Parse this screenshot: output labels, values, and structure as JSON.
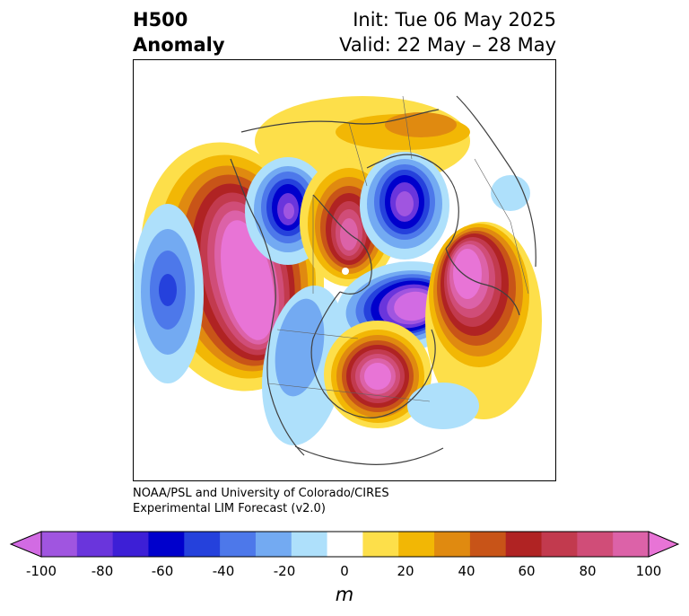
{
  "title": {
    "left": [
      "H500",
      "Anomaly"
    ],
    "right": [
      "Init: Tue 06 May 2025",
      "Valid: 22 May – 28 May"
    ]
  },
  "credits": [
    "NOAA/PSL and University of Colorado/CIRES",
    "Experimental LIM Forecast (v2.0)"
  ],
  "colorbar": {
    "unit": "m",
    "ticks": [
      "-100",
      "-80",
      "-60",
      "-40",
      "-20",
      "0",
      "20",
      "40",
      "60",
      "80",
      "100"
    ],
    "levels": [
      {
        "range": "-100 to -90",
        "color": "#d26be3"
      },
      {
        "range": "-90 to -80",
        "color": "#a055e0"
      },
      {
        "range": "-80 to -70",
        "color": "#6a35dc"
      },
      {
        "range": "-70 to -60",
        "color": "#3d1fd6"
      },
      {
        "range": "-60 to -50",
        "color": "#0000cc"
      },
      {
        "range": "-50 to -40",
        "color": "#2541dc"
      },
      {
        "range": "-40 to -30",
        "color": "#4d78ea"
      },
      {
        "range": "-30 to -20",
        "color": "#73aaf2"
      },
      {
        "range": "-20 to -10",
        "color": "#aee0fb"
      },
      {
        "range": "-10 to 10",
        "color": "#ffffff"
      },
      {
        "range": "10 to 20",
        "color": "#fddf4a"
      },
      {
        "range": "20 to 30",
        "color": "#f2b705"
      },
      {
        "range": "30 to 40",
        "color": "#e08a10"
      },
      {
        "range": "40 to 50",
        "color": "#c85418"
      },
      {
        "range": "50 to 60",
        "color": "#b02323"
      },
      {
        "range": "60 to 70",
        "color": "#c23a4e"
      },
      {
        "range": "70 to 80",
        "color": "#d04d78"
      },
      {
        "range": "80 to 90",
        "color": "#dc62a8"
      },
      {
        "range": "90 to 100",
        "color": "#e874d6"
      }
    ]
  },
  "map": {
    "region": "North America / North Pacific / North Atlantic (polar view)",
    "anomalies": [
      {
        "location": "NE Pacific / west of North America",
        "sign": "positive",
        "peak_m": 100
      },
      {
        "location": "Central North Pacific",
        "sign": "negative",
        "peak_m": -50
      },
      {
        "location": "NW Canada / Alaska interior",
        "sign": "negative",
        "peak_m": -70
      },
      {
        "location": "Hudson Bay / Arctic Canada",
        "sign": "positive",
        "peak_m": 90
      },
      {
        "location": "Baffin Bay / Greenland west",
        "sign": "negative",
        "peak_m": -80
      },
      {
        "location": "Greenland / Arctic",
        "sign": "negative",
        "peak_m": -90
      },
      {
        "location": "Greenland east / N Atlantic",
        "sign": "positive",
        "peak_m": 90
      },
      {
        "location": "Scandinavia / N Europe",
        "sign": "positive",
        "peak_m": 100
      },
      {
        "location": "Western US",
        "sign": "negative",
        "peak_m": -30
      }
    ]
  }
}
